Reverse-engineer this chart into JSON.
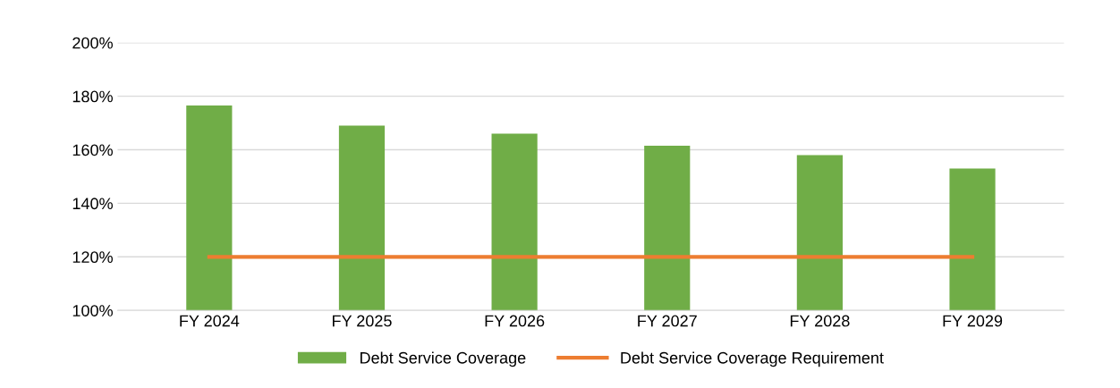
{
  "chart_data": {
    "type": "bar",
    "categories": [
      "FY 2024",
      "FY 2025",
      "FY 2026",
      "FY 2027",
      "FY 2028",
      "FY 2029"
    ],
    "series": [
      {
        "name": "Debt Service Coverage",
        "color": "#70ad47",
        "values": [
          176.5,
          169,
          166,
          161.5,
          158,
          153
        ]
      },
      {
        "name": "Debt Service Coverage Requirement",
        "type": "line",
        "color": "#ed7d31",
        "values": [
          120,
          120,
          120,
          120,
          120,
          120
        ]
      }
    ],
    "ylim": [
      100,
      200
    ],
    "yticks": [
      {
        "value": 100,
        "label": "100%"
      },
      {
        "value": 120,
        "label": "120%"
      },
      {
        "value": 140,
        "label": "140%"
      },
      {
        "value": 160,
        "label": "160%"
      },
      {
        "value": 180,
        "label": "180%"
      },
      {
        "value": 200,
        "label": "200%"
      }
    ],
    "grid": "y",
    "legend": "bottom",
    "marker": "none",
    "line_style": "solid"
  }
}
